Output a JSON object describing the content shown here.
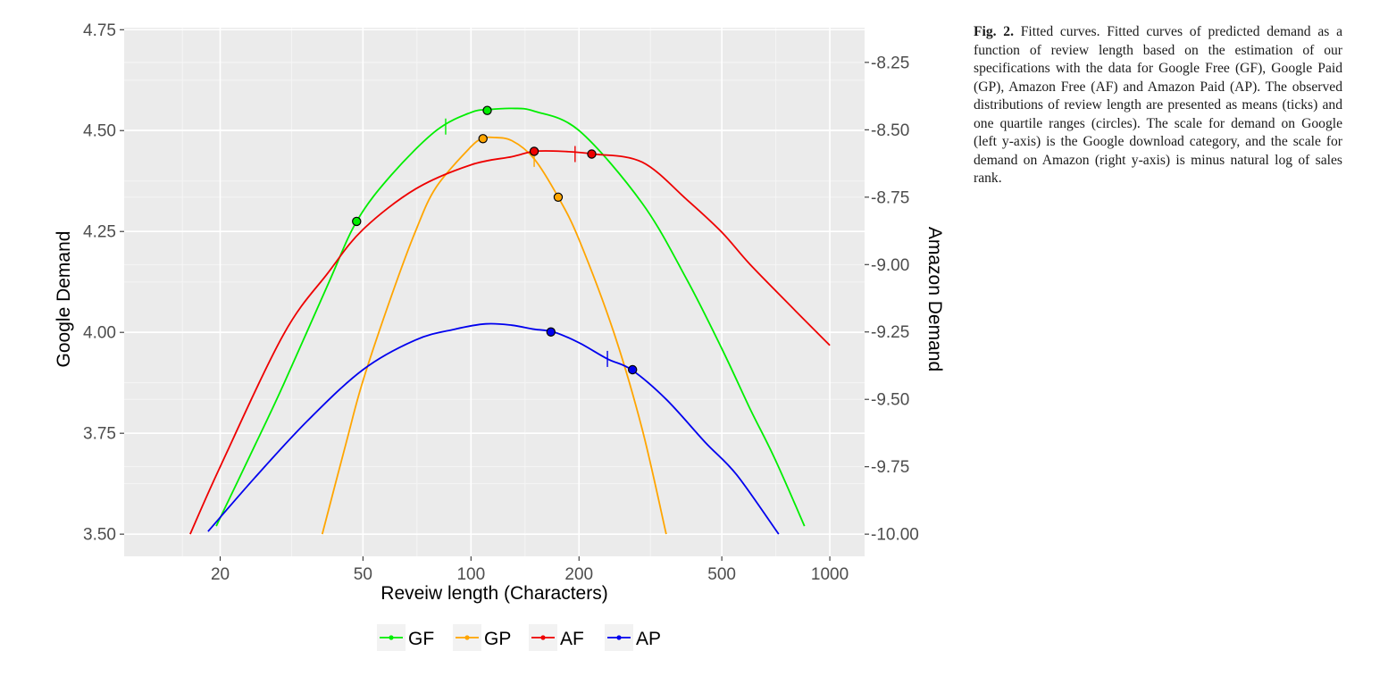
{
  "chart_data": {
    "type": "line",
    "xlabel": "Reveiw length (Characters)",
    "ylabel": "Google Demand",
    "y2label": "Amazon Demand",
    "x_scale": "log10",
    "xlim": [
      10.8,
      1250
    ],
    "xticks": [
      {
        "value": 20,
        "label": "20"
      },
      {
        "value": 50,
        "label": "50"
      },
      {
        "value": 100,
        "label": "100"
      },
      {
        "value": 200,
        "label": "200"
      },
      {
        "value": 500,
        "label": "500"
      },
      {
        "value": 1000,
        "label": "1000"
      }
    ],
    "ylim": [
      3.445,
      4.755
    ],
    "yticks": [
      {
        "value": 3.5,
        "label": "3.50"
      },
      {
        "value": 3.75,
        "label": "3.75"
      },
      {
        "value": 4.0,
        "label": "4.00"
      },
      {
        "value": 4.25,
        "label": "4.25"
      },
      {
        "value": 4.5,
        "label": "4.50"
      },
      {
        "value": 4.75,
        "label": "4.75"
      }
    ],
    "y2ticks": [
      {
        "value": -8.25,
        "label": "-8.25"
      },
      {
        "value": -8.5,
        "label": "-8.50"
      },
      {
        "value": -8.75,
        "label": "-8.75"
      },
      {
        "value": -9.0,
        "label": "-9.00"
      },
      {
        "value": -9.25,
        "label": "-9.25"
      },
      {
        "value": -9.5,
        "label": "-9.50"
      },
      {
        "value": -9.75,
        "label": "-9.75"
      },
      {
        "value": -10.0,
        "label": "-10.00"
      }
    ],
    "grid": true,
    "legend_position": "bottom",
    "series": [
      {
        "name": "GF",
        "color": "#00ee00",
        "axis": "left",
        "x": [
          19.5,
          25,
          30,
          40,
          48,
          60,
          80,
          100,
          112,
          130,
          150,
          200,
          300,
          400,
          500,
          600,
          700,
          850
        ],
        "y": [
          3.52,
          3.72,
          3.87,
          4.12,
          4.275,
          4.39,
          4.5,
          4.545,
          4.552,
          4.555,
          4.548,
          4.5,
          4.32,
          4.13,
          3.96,
          3.81,
          3.69,
          3.52
        ],
        "quartile_points": [
          {
            "x": 48,
            "y": 4.275
          },
          {
            "x": 111,
            "y": 4.55
          }
        ],
        "mean_tick": {
          "x": 85,
          "y": 4.51
        }
      },
      {
        "name": "GP",
        "color": "#ffa500",
        "axis": "left",
        "x": [
          38.5,
          45,
          50,
          60,
          70,
          80,
          100,
          108,
          115,
          130,
          150,
          175,
          200,
          250,
          300,
          350
        ],
        "y": [
          3.5,
          3.73,
          3.88,
          4.09,
          4.25,
          4.36,
          4.46,
          4.48,
          4.483,
          4.475,
          4.43,
          4.335,
          4.23,
          4.0,
          3.76,
          3.5
        ],
        "quartile_points": [
          {
            "x": 108,
            "y": 4.48
          },
          {
            "x": 175,
            "y": 4.335
          }
        ],
        "mean_tick": {
          "x": 150,
          "y": 4.43
        }
      },
      {
        "name": "AF",
        "color": "#ee0000",
        "axis": "right",
        "x": [
          16.5,
          20,
          30,
          40,
          50,
          70,
          100,
          130,
          150,
          180,
          220,
          300,
          400,
          500,
          600,
          800,
          1000
        ],
        "y": [
          -10.0,
          -9.75,
          -9.26,
          -9.03,
          -8.87,
          -8.72,
          -8.63,
          -8.6,
          -8.58,
          -8.58,
          -8.59,
          -8.62,
          -8.76,
          -8.88,
          -9.0,
          -9.17,
          -9.3
        ],
        "quartile_points": [
          {
            "x": 150,
            "y": -8.58
          },
          {
            "x": 217,
            "y": -8.59
          }
        ],
        "mean_tick": {
          "x": 195,
          "y": -8.59
        }
      },
      {
        "name": "AP",
        "color": "#0000ee",
        "axis": "right",
        "x": [
          18.5,
          25,
          35,
          50,
          70,
          90,
          110,
          130,
          150,
          170,
          200,
          240,
          280,
          350,
          450,
          550,
          720
        ],
        "y": [
          -9.99,
          -9.79,
          -9.58,
          -9.39,
          -9.28,
          -9.24,
          -9.22,
          -9.225,
          -9.24,
          -9.25,
          -9.29,
          -9.35,
          -9.39,
          -9.5,
          -9.66,
          -9.78,
          -10.0
        ],
        "quartile_points": [
          {
            "x": 167,
            "y": -9.25
          },
          {
            "x": 282,
            "y": -9.39
          }
        ],
        "mean_tick": {
          "x": 240,
          "y": -9.35
        }
      }
    ]
  },
  "caption": {
    "label": "Fig. 2.",
    "text": "Fitted curves. Fitted curves of predicted demand as a function of review length based on the estimation of our specifications with the data for Google Free (GF), Google Paid (GP), Amazon Free (AF) and Amazon Paid (AP). The observed distributions of review length are presented as means (ticks) and one quartile ranges (circles). The scale for demand on Google (left y-axis) is the Google download category, and the scale for demand on Amazon (right y-axis) is minus natural log of sales rank."
  }
}
